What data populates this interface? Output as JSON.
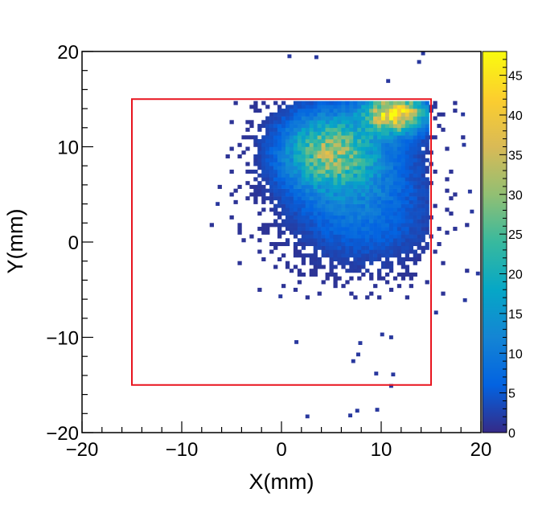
{
  "chart_data": {
    "type": "heatmap",
    "title": "",
    "xlabel": "X(mm)",
    "ylabel": "Y(mm)",
    "xlim": [
      -20,
      20
    ],
    "ylim": [
      -20,
      20
    ],
    "xticks": [
      -20,
      -10,
      0,
      10,
      20
    ],
    "yticks": [
      -20,
      -10,
      0,
      10,
      20
    ],
    "xtick_labels": [
      "−20",
      "−10",
      "0",
      "10",
      "20"
    ],
    "ytick_labels": [
      "−20",
      "−10",
      "0",
      "10",
      "20"
    ],
    "bin_size": 0.4,
    "zlim": [
      0,
      48
    ],
    "colorbar_ticks": [
      0,
      5,
      10,
      15,
      20,
      25,
      30,
      35,
      40,
      45
    ],
    "colorbar_labels": [
      "0",
      "5",
      "10",
      "15",
      "20",
      "25",
      "30",
      "35",
      "40",
      "45"
    ],
    "region_box": {
      "x": [
        -15,
        15
      ],
      "y": [
        -15,
        15
      ],
      "color": "#e8141e"
    },
    "density": {
      "peak": {
        "x": 11.5,
        "y": 13.5,
        "value": 44
      },
      "secondary_cluster": {
        "x": 4.5,
        "y": 9.5,
        "value": 22
      },
      "x_range": [
        -8,
        19
      ],
      "y_range": [
        -6,
        15
      ],
      "hard_edges": {
        "y_max": 15,
        "x_max": 15
      }
    },
    "outliers": [
      {
        "x": 0.6,
        "y": 19.3
      },
      {
        "x": 3.3,
        "y": 19.2
      },
      {
        "x": 13.6,
        "y": 18.7
      },
      {
        "x": 14.0,
        "y": 19.6
      },
      {
        "x": 10.5,
        "y": 16.7
      },
      {
        "x": -6.6,
        "y": 3.8
      },
      {
        "x": -0.3,
        "y": -5.9
      },
      {
        "x": 1.3,
        "y": -10.7
      },
      {
        "x": 7.0,
        "y": -12.7
      },
      {
        "x": 7.5,
        "y": -12.0
      },
      {
        "x": 9.3,
        "y": -14.0
      },
      {
        "x": 11.0,
        "y": -14.1
      },
      {
        "x": 10.8,
        "y": -15.3
      },
      {
        "x": 9.9,
        "y": -9.9
      },
      {
        "x": 10.8,
        "y": -10.2
      },
      {
        "x": 7.7,
        "y": -10.8
      },
      {
        "x": 2.4,
        "y": -18.5
      },
      {
        "x": 6.7,
        "y": -18.4
      },
      {
        "x": 7.4,
        "y": -17.9
      },
      {
        "x": 9.4,
        "y": -17.8
      },
      {
        "x": 15.3,
        "y": -7.6
      },
      {
        "x": 18.2,
        "y": -6.3
      },
      {
        "x": 18.9,
        "y": 3.0
      },
      {
        "x": 18.1,
        "y": 10.0
      },
      {
        "x": 18.0,
        "y": 13.2
      },
      {
        "x": 18.7,
        "y": 5.1
      },
      {
        "x": 19.5,
        "y": -3.5
      }
    ],
    "colors": {
      "palette": [
        "#352a87",
        "#0363e1",
        "#1485d4",
        "#06a7c6",
        "#38b99e",
        "#92bf73",
        "#d9ba56",
        "#fcce2e",
        "#f9fb0e"
      ],
      "box": "#e8141e"
    }
  }
}
